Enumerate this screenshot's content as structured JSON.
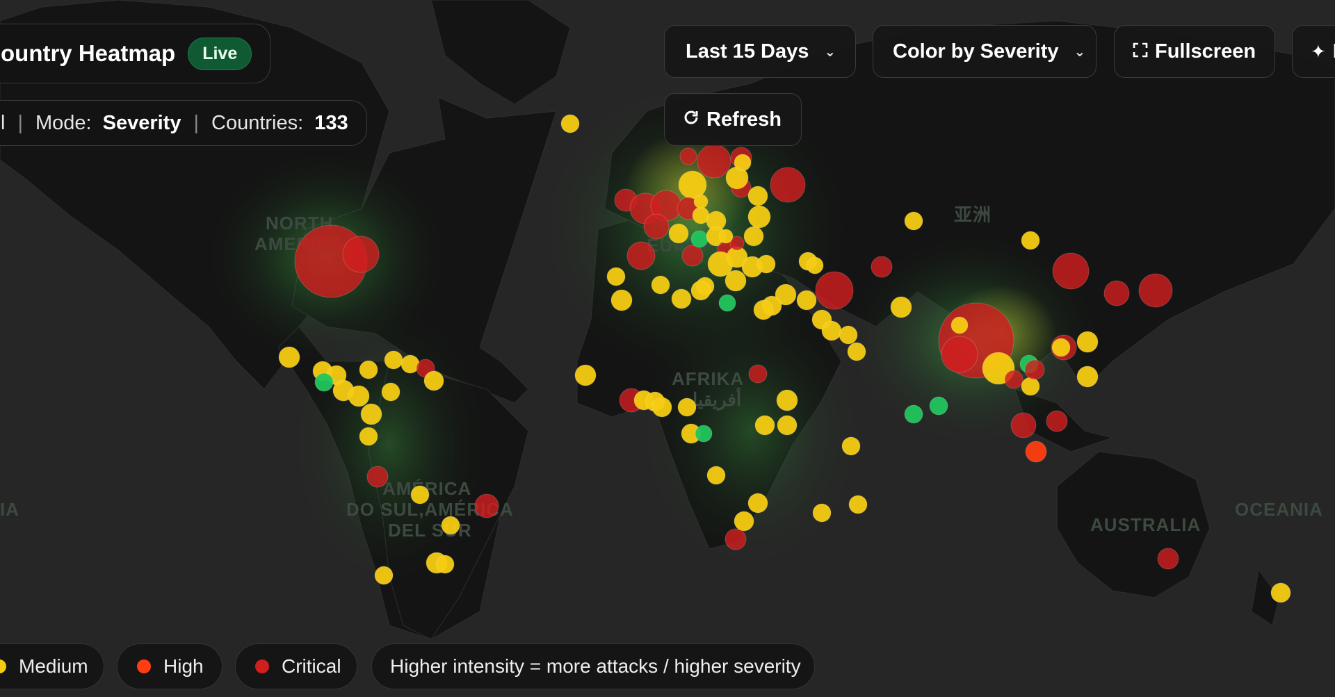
{
  "header": {
    "title": "ountry Heatmap",
    "live_badge": "Live"
  },
  "status": {
    "prefix": "l",
    "mode_label": "Mode:",
    "mode_value": "Severity",
    "countries_label": "Countries:",
    "countries_value": "133"
  },
  "controls": {
    "range_select": "Last 15 Days",
    "color_select": "Color by Severity",
    "fullscreen": "Fullscreen",
    "more_partial": "R",
    "refresh": "Refresh"
  },
  "map": {
    "labels": [
      "NORTH",
      "AMERICA",
      "EUROPE",
      "亚洲",
      "AFRIKA",
      "أفريقيا",
      "AMÉRICA",
      "DO SUL,AMÉRICA",
      "DEL SUR",
      "AUSTRALIA",
      "OCEANIA",
      "IA"
    ]
  },
  "legend": {
    "medium": "Medium",
    "high": "High",
    "critical": "Critical",
    "note": "Higher intensity = more attacks / higher severity"
  },
  "colors": {
    "low": "#22c55e",
    "medium": "#f5cc12",
    "high": "#ff3d12",
    "critical": "#cf1f1f",
    "live": "#0f5a33",
    "background": "#262626",
    "land": "#141414"
  },
  "icons": {
    "refresh": "refresh-icon",
    "fullscreen": "fullscreen-icon",
    "more": "sparkle-icon",
    "chevron": "chevron-down-icon"
  }
}
